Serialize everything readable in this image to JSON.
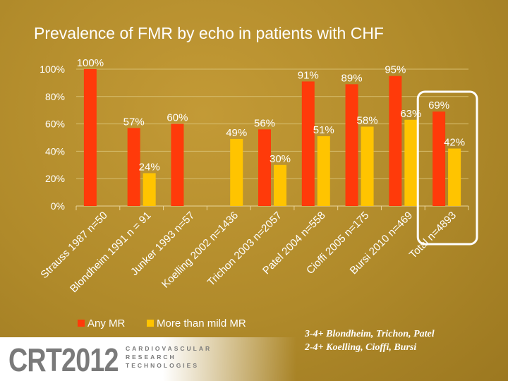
{
  "slide": {
    "title": "Prevalence of FMR by echo in patients with CHF",
    "footnotes": [
      "3-4+ Blondheim, Trichon, Patel",
      "2-4+ Koelling, Cioffi, Bursi"
    ],
    "logo": {
      "main": "CRT2012",
      "sub": [
        "CARDIOVASCULAR",
        "RESEARCH",
        "TECHNOLOGIES"
      ]
    }
  },
  "chart_data": {
    "type": "bar",
    "title": "",
    "xlabel": "",
    "ylabel": "",
    "ylim": [
      0,
      100
    ],
    "yticks": [
      "0%",
      "20%",
      "40%",
      "60%",
      "80%",
      "100%"
    ],
    "grid": true,
    "legend_position": "bottom",
    "categories": [
      "Strauss 1987 n=50",
      "Blondheim 1991 n = 91",
      "Junker 1993 n=57",
      "Koelling 2002 n=1436",
      "Trichon 2003 n=2057",
      "Patel 2004 n=558",
      "Cioffi 2005 n=175",
      "Bursi 2010 n=469",
      "Total n=4893"
    ],
    "series": [
      {
        "name": "Any MR",
        "color": "#ff3a0a",
        "values": [
          100,
          57,
          60,
          null,
          56,
          91,
          89,
          95,
          69
        ],
        "labels": [
          "100%",
          "57%",
          "60%",
          "",
          "56%",
          "91%",
          "89%",
          "95%",
          "69%"
        ]
      },
      {
        "name": "More than mild MR",
        "color": "#ffc400",
        "values": [
          null,
          24,
          null,
          49,
          30,
          51,
          58,
          63,
          42
        ],
        "labels": [
          "",
          "24%",
          "",
          "49%",
          "30%",
          "51%",
          "58%",
          "63%",
          "42%"
        ]
      }
    ],
    "highlight_category": "Total n=4893"
  }
}
